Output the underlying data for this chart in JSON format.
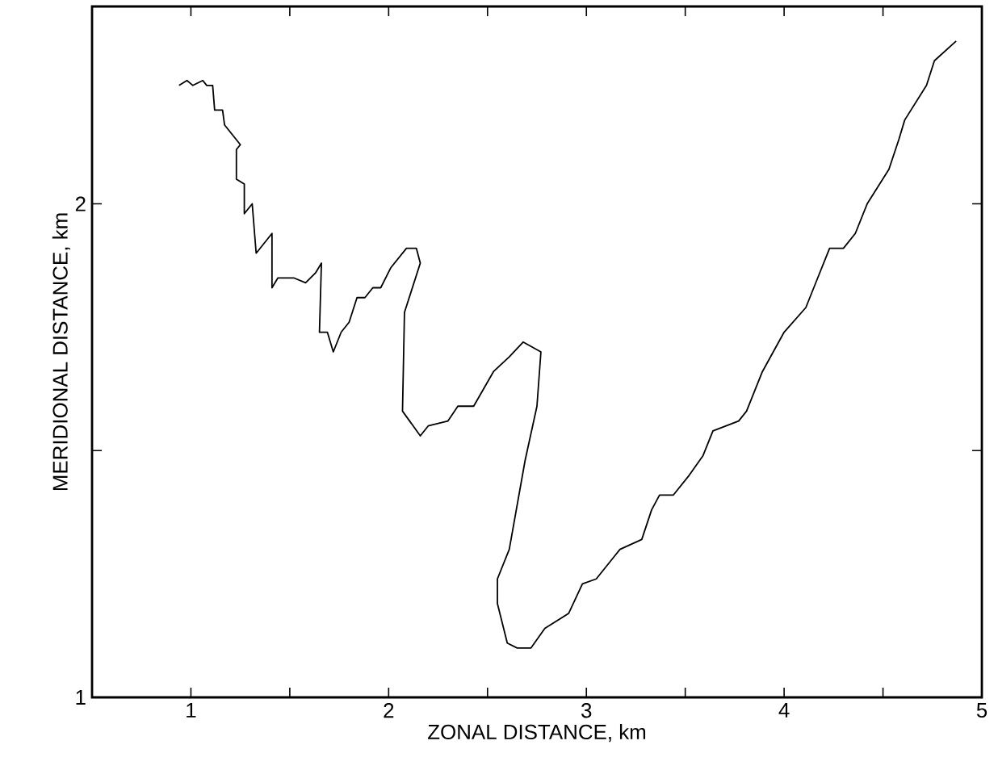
{
  "chart_data": {
    "type": "line",
    "xlabel": "ZONAL DISTANCE, km",
    "ylabel": "MERIDIONAL DISTANCE, km",
    "xlim": [
      0.5,
      5
    ],
    "ylim": [
      1,
      2.4
    ],
    "xticks": [
      {
        "value": 0.5,
        "label": null
      },
      1,
      {
        "value": 1.5,
        "label": null
      },
      2,
      {
        "value": 2.5,
        "label": null
      },
      3,
      {
        "value": 3.5,
        "label": null
      },
      4,
      {
        "value": 4.5,
        "label": null
      },
      5
    ],
    "yticks": [
      1,
      {
        "value": 1.5,
        "label": null
      },
      2
    ],
    "grid": false,
    "marker": "none",
    "line_style": "solid",
    "series": [
      {
        "color": "#000000",
        "x": [
          0.94,
          0.98,
          1.01,
          1.06,
          1.08,
          1.11,
          1.12,
          1.16,
          1.17,
          1.25,
          1.23,
          1.23,
          1.27,
          1.27,
          1.31,
          1.33,
          1.41,
          1.41,
          1.44,
          1.52,
          1.58,
          1.63,
          1.66,
          1.65,
          1.69,
          1.72,
          1.76,
          1.8,
          1.84,
          1.88,
          1.92,
          1.96,
          2.01,
          2.09,
          2.14,
          2.16,
          2.08,
          2.07,
          2.16,
          2.2,
          2.3,
          2.35,
          2.43,
          2.53,
          2.61,
          2.68,
          2.77,
          2.75,
          2.69,
          2.61,
          2.55,
          2.55,
          2.6,
          2.65,
          2.72,
          2.79,
          2.91,
          2.98,
          3.05,
          3.17,
          3.28,
          3.33,
          3.37,
          3.44,
          3.52,
          3.59,
          3.64,
          3.77,
          3.81,
          3.89,
          4.0,
          4.11,
          4.15,
          4.23,
          4.3,
          4.36,
          4.42,
          4.53,
          4.58,
          4.61,
          4.72,
          4.76,
          4.87
        ],
        "values": [
          2.24,
          2.25,
          2.24,
          2.25,
          2.24,
          2.24,
          2.19,
          2.19,
          2.16,
          2.12,
          2.11,
          2.05,
          2.04,
          1.98,
          2.0,
          1.9,
          1.94,
          1.83,
          1.85,
          1.85,
          1.84,
          1.86,
          1.88,
          1.74,
          1.74,
          1.7,
          1.74,
          1.76,
          1.81,
          1.81,
          1.83,
          1.83,
          1.87,
          1.91,
          1.91,
          1.88,
          1.78,
          1.58,
          1.53,
          1.55,
          1.56,
          1.59,
          1.59,
          1.66,
          1.69,
          1.72,
          1.7,
          1.59,
          1.48,
          1.3,
          1.24,
          1.19,
          1.11,
          1.1,
          1.1,
          1.14,
          1.17,
          1.23,
          1.24,
          1.3,
          1.32,
          1.38,
          1.41,
          1.41,
          1.45,
          1.49,
          1.54,
          1.56,
          1.58,
          1.66,
          1.74,
          1.79,
          1.83,
          1.91,
          1.91,
          1.94,
          2.0,
          2.07,
          2.13,
          2.17,
          2.24,
          2.29,
          2.33
        ]
      }
    ]
  }
}
